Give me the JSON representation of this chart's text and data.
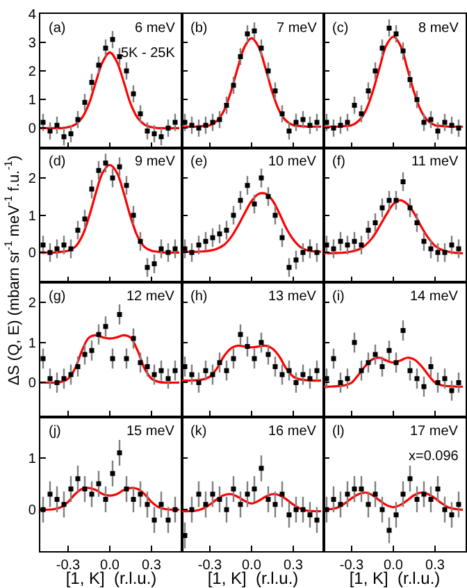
{
  "chart_data": [
    {
      "type": "scatter",
      "marker": "square",
      "xlim": [
        -0.5,
        0.52
      ],
      "ylim": [
        -0.7,
        4
      ],
      "xticks": [
        {
          "value": -0.3,
          "label": null
        },
        {
          "value": 0,
          "label": null
        },
        {
          "value": 0.3,
          "label": null
        }
      ],
      "yticks": [
        0,
        1,
        2,
        3,
        4
      ],
      "tick_labels": "y",
      "annotations": [
        "(a)",
        "6 meV",
        "5K - 25K"
      ],
      "series": [
        {
          "color": "#000000",
          "x": [
            -0.48,
            -0.43,
            -0.38,
            -0.33,
            -0.28,
            -0.23,
            -0.18,
            -0.13,
            -0.08,
            -0.03,
            0.02,
            0.07,
            0.12,
            0.17,
            0.22,
            0.27,
            0.32,
            0.37,
            0.42,
            0.47
          ],
          "values": [
            0.2,
            -0.1,
            0.1,
            -0.3,
            -0.2,
            0.3,
            0.9,
            1.6,
            2.2,
            2.8,
            3.1,
            2.5,
            2.0,
            1.2,
            0.5,
            -0.1,
            -0.2,
            -0.3,
            0.0,
            0.2
          ],
          "errors": [
            0.3,
            0.3,
            0.3,
            0.3,
            0.3,
            0.3,
            0.3,
            0.3,
            0.3,
            0.3,
            0.3,
            0.3,
            0.3,
            0.3,
            0.3,
            0.3,
            0.3,
            0.3,
            0.3,
            0.3
          ]
        },
        {
          "type": "line",
          "marker": "none",
          "color": "#ff0000",
          "x": [
            -0.5,
            -0.45,
            -0.4,
            -0.35,
            -0.3,
            -0.25,
            -0.2,
            -0.15,
            -0.1,
            -0.05,
            0.0,
            0.05,
            0.1,
            0.15,
            0.2,
            0.25,
            0.3,
            0.35,
            0.4,
            0.45,
            0.5
          ],
          "values": [
            0,
            0,
            0,
            0,
            0.03,
            0.12,
            0.36,
            0.85,
            1.62,
            2.33,
            2.65,
            2.33,
            1.62,
            0.85,
            0.36,
            0.12,
            0.03,
            0,
            0,
            0,
            0
          ]
        }
      ]
    },
    {
      "type": "scatter",
      "marker": "square",
      "xlim": [
        -0.5,
        0.52
      ],
      "ylim": [
        -0.7,
        4
      ],
      "xticks": [
        {
          "value": -0.3,
          "label": null
        },
        {
          "value": 0,
          "label": null
        },
        {
          "value": 0.3,
          "label": null
        }
      ],
      "yticks": [
        {
          "value": 0,
          "label": null
        },
        {
          "value": 1,
          "label": null
        },
        {
          "value": 2,
          "label": null
        },
        {
          "value": 3,
          "label": null
        },
        {
          "value": 4,
          "label": null
        }
      ],
      "tick_labels": false,
      "annotations": [
        "(b)",
        "7 meV"
      ],
      "series": [
        {
          "color": "#000000",
          "x": [
            -0.48,
            -0.43,
            -0.38,
            -0.33,
            -0.28,
            -0.23,
            -0.18,
            -0.13,
            -0.08,
            -0.03,
            0.02,
            0.07,
            0.12,
            0.17,
            0.22,
            0.27,
            0.32,
            0.37,
            0.42,
            0.47
          ],
          "values": [
            0.2,
            0.1,
            0.0,
            0.1,
            0.2,
            0.3,
            0.8,
            1.5,
            2.5,
            3.3,
            3.4,
            2.8,
            2.0,
            1.3,
            0.5,
            -0.1,
            0.2,
            0.3,
            0.1,
            0.2
          ],
          "errors": [
            0.3,
            0.3,
            0.3,
            0.3,
            0.3,
            0.3,
            0.3,
            0.3,
            0.3,
            0.3,
            0.3,
            0.3,
            0.3,
            0.3,
            0.3,
            0.3,
            0.3,
            0.3,
            0.3,
            0.3
          ]
        },
        {
          "type": "line",
          "marker": "none",
          "color": "#ff0000",
          "x": [
            -0.5,
            -0.45,
            -0.4,
            -0.35,
            -0.3,
            -0.25,
            -0.2,
            -0.15,
            -0.1,
            -0.05,
            0.0,
            0.05,
            0.1,
            0.15,
            0.2,
            0.25,
            0.3,
            0.35,
            0.4,
            0.45,
            0.5
          ],
          "values": [
            0.05,
            0.05,
            0.05,
            0.07,
            0.1,
            0.25,
            0.6,
            1.25,
            2.1,
            2.85,
            3.15,
            2.85,
            2.1,
            1.25,
            0.6,
            0.25,
            0.1,
            0.07,
            0.05,
            0.05,
            0.05
          ]
        }
      ]
    },
    {
      "type": "scatter",
      "marker": "square",
      "xlim": [
        -0.5,
        0.52
      ],
      "ylim": [
        -0.7,
        4
      ],
      "xticks": [
        {
          "value": -0.3,
          "label": null
        },
        {
          "value": 0,
          "label": null
        },
        {
          "value": 0.3,
          "label": null
        }
      ],
      "yticks": [
        {
          "value": 0,
          "label": null
        },
        {
          "value": 1,
          "label": null
        },
        {
          "value": 2,
          "label": null
        },
        {
          "value": 3,
          "label": null
        },
        {
          "value": 4,
          "label": null
        }
      ],
      "tick_labels": false,
      "annotations": [
        "(c)",
        "8 meV"
      ],
      "series": [
        {
          "color": "#000000",
          "x": [
            -0.48,
            -0.43,
            -0.38,
            -0.33,
            -0.28,
            -0.23,
            -0.18,
            -0.13,
            -0.08,
            -0.03,
            0.02,
            0.07,
            0.12,
            0.17,
            0.22,
            0.27,
            0.32,
            0.37,
            0.42,
            0.47
          ],
          "values": [
            0.2,
            0.0,
            0.1,
            0.2,
            0.8,
            0.5,
            1.3,
            2.0,
            2.8,
            3.5,
            3.3,
            2.7,
            1.7,
            1.0,
            0.2,
            0.3,
            -0.1,
            0.2,
            0.1,
            0.0
          ],
          "errors": [
            0.3,
            0.3,
            0.3,
            0.3,
            0.3,
            0.3,
            0.3,
            0.3,
            0.3,
            0.3,
            0.3,
            0.3,
            0.3,
            0.3,
            0.3,
            0.3,
            0.3,
            0.3,
            0.3,
            0.3
          ]
        },
        {
          "type": "line",
          "marker": "none",
          "color": "#ff0000",
          "x": [
            -0.5,
            -0.45,
            -0.4,
            -0.35,
            -0.3,
            -0.25,
            -0.2,
            -0.15,
            -0.1,
            -0.05,
            0.0,
            0.05,
            0.1,
            0.15,
            0.2,
            0.25,
            0.3,
            0.35,
            0.4,
            0.45,
            0.5
          ],
          "values": [
            0.05,
            0.05,
            0.05,
            0.07,
            0.1,
            0.25,
            0.6,
            1.25,
            2.1,
            2.9,
            3.2,
            2.9,
            2.1,
            1.25,
            0.6,
            0.25,
            0.1,
            0.07,
            0.05,
            0.05,
            0.05
          ]
        }
      ]
    },
    {
      "type": "scatter",
      "marker": "square",
      "xlim": [
        -0.5,
        0.52
      ],
      "ylim": [
        -0.8,
        2.8
      ],
      "xticks": [
        {
          "value": -0.3,
          "label": null
        },
        {
          "value": 0,
          "label": null
        },
        {
          "value": 0.3,
          "label": null
        }
      ],
      "yticks": [
        0,
        1,
        2
      ],
      "tick_labels": "y",
      "annotations": [
        "(d)",
        "9 meV"
      ],
      "series": [
        {
          "color": "#000000",
          "x": [
            -0.48,
            -0.43,
            -0.38,
            -0.33,
            -0.28,
            -0.23,
            -0.18,
            -0.13,
            -0.08,
            -0.03,
            0.02,
            0.07,
            0.12,
            0.17,
            0.22,
            0.27,
            0.32,
            0.37,
            0.42,
            0.47
          ],
          "values": [
            0.2,
            0.0,
            0.1,
            0.2,
            0.1,
            0.6,
            0.9,
            1.7,
            2.2,
            2.4,
            2.0,
            2.3,
            1.8,
            1.0,
            0.3,
            -0.4,
            -0.3,
            0.1,
            0.0,
            0.1
          ],
          "errors": [
            0.25,
            0.25,
            0.25,
            0.25,
            0.25,
            0.25,
            0.25,
            0.25,
            0.25,
            0.25,
            0.25,
            0.25,
            0.25,
            0.25,
            0.25,
            0.25,
            0.25,
            0.25,
            0.25,
            0.25
          ]
        },
        {
          "type": "line",
          "marker": "none",
          "color": "#ff0000",
          "x": [
            -0.5,
            -0.45,
            -0.4,
            -0.35,
            -0.3,
            -0.25,
            -0.2,
            -0.15,
            -0.1,
            -0.05,
            0.0,
            0.05,
            0.1,
            0.15,
            0.2,
            0.25,
            0.3,
            0.35,
            0.4,
            0.45,
            0.5
          ],
          "values": [
            0,
            0,
            0,
            0.02,
            0.05,
            0.15,
            0.43,
            0.95,
            1.6,
            2.15,
            2.35,
            2.15,
            1.6,
            0.95,
            0.43,
            0.15,
            0.05,
            0.02,
            0,
            0,
            0
          ]
        }
      ]
    },
    {
      "type": "scatter",
      "marker": "square",
      "xlim": [
        -0.5,
        0.52
      ],
      "ylim": [
        -0.8,
        2.8
      ],
      "xticks": [
        {
          "value": -0.3,
          "label": null
        },
        {
          "value": 0,
          "label": null
        },
        {
          "value": 0.3,
          "label": null
        }
      ],
      "yticks": [
        {
          "value": 0,
          "label": null
        },
        {
          "value": 1,
          "label": null
        },
        {
          "value": 2,
          "label": null
        }
      ],
      "tick_labels": false,
      "annotations": [
        "(e)",
        "10 meV"
      ],
      "series": [
        {
          "color": "#000000",
          "x": [
            -0.48,
            -0.43,
            -0.38,
            -0.33,
            -0.28,
            -0.23,
            -0.18,
            -0.13,
            -0.08,
            -0.03,
            0.02,
            0.07,
            0.12,
            0.17,
            0.22,
            0.27,
            0.32,
            0.37,
            0.42,
            0.47
          ],
          "values": [
            0.1,
            0.0,
            0.2,
            0.3,
            0.4,
            0.5,
            0.6,
            1.0,
            1.4,
            1.8,
            1.3,
            2.0,
            1.5,
            1.0,
            0.4,
            -0.4,
            -0.2,
            0.0,
            0.1,
            0.0
          ],
          "errors": [
            0.25,
            0.25,
            0.25,
            0.25,
            0.25,
            0.25,
            0.25,
            0.25,
            0.25,
            0.25,
            0.25,
            0.25,
            0.25,
            0.25,
            0.25,
            0.25,
            0.25,
            0.25,
            0.25,
            0.25
          ]
        },
        {
          "type": "line",
          "marker": "none",
          "color": "#ff0000",
          "x": [
            -0.5,
            -0.45,
            -0.4,
            -0.35,
            -0.3,
            -0.25,
            -0.2,
            -0.15,
            -0.1,
            -0.05,
            0.0,
            0.05,
            0.1,
            0.15,
            0.2,
            0.25,
            0.3,
            0.35,
            0.4,
            0.45,
            0.5
          ],
          "values": [
            0.02,
            0.02,
            0.02,
            0.03,
            0.05,
            0.1,
            0.2,
            0.4,
            0.7,
            1.05,
            1.38,
            1.57,
            1.58,
            1.4,
            1.05,
            0.65,
            0.35,
            0.15,
            0.06,
            0.03,
            0.02
          ]
        }
      ]
    },
    {
      "type": "scatter",
      "marker": "square",
      "xlim": [
        -0.5,
        0.52
      ],
      "ylim": [
        -0.8,
        2.8
      ],
      "xticks": [
        {
          "value": -0.3,
          "label": null
        },
        {
          "value": 0,
          "label": null
        },
        {
          "value": 0.3,
          "label": null
        }
      ],
      "yticks": [
        {
          "value": 0,
          "label": null
        },
        {
          "value": 1,
          "label": null
        },
        {
          "value": 2,
          "label": null
        }
      ],
      "tick_labels": false,
      "annotations": [
        "(f)",
        "11 meV"
      ],
      "series": [
        {
          "color": "#000000",
          "x": [
            -0.48,
            -0.43,
            -0.38,
            -0.33,
            -0.28,
            -0.23,
            -0.18,
            -0.13,
            -0.08,
            -0.03,
            0.02,
            0.07,
            0.12,
            0.17,
            0.22,
            0.27,
            0.32,
            0.37,
            0.42,
            0.47
          ],
          "values": [
            0.2,
            0.1,
            0.3,
            0.2,
            0.3,
            0.2,
            0.6,
            0.8,
            1.2,
            1.4,
            1.4,
            1.9,
            1.2,
            0.8,
            0.3,
            0.1,
            0.0,
            0.0,
            0.2,
            0.1
          ],
          "errors": [
            0.25,
            0.25,
            0.25,
            0.25,
            0.25,
            0.25,
            0.25,
            0.25,
            0.25,
            0.25,
            0.25,
            0.25,
            0.25,
            0.25,
            0.25,
            0.25,
            0.25,
            0.25,
            0.25,
            0.25
          ]
        },
        {
          "type": "line",
          "marker": "none",
          "color": "#ff0000",
          "x": [
            -0.5,
            -0.45,
            -0.4,
            -0.35,
            -0.3,
            -0.25,
            -0.2,
            -0.15,
            -0.1,
            -0.05,
            0.0,
            0.05,
            0.1,
            0.15,
            0.2,
            0.25,
            0.3,
            0.35,
            0.4,
            0.45,
            0.5
          ],
          "values": [
            -0.02,
            -0.02,
            -0.01,
            0.0,
            0.03,
            0.08,
            0.2,
            0.4,
            0.7,
            1.02,
            1.3,
            1.4,
            1.3,
            1.05,
            0.7,
            0.4,
            0.18,
            0.07,
            0.02,
            -0.01,
            -0.02
          ]
        }
      ]
    },
    {
      "type": "scatter",
      "marker": "square",
      "xlim": [
        -0.5,
        0.52
      ],
      "ylim": [
        -0.85,
        2.5
      ],
      "xticks": [
        {
          "value": -0.3,
          "label": null
        },
        {
          "value": 0,
          "label": null
        },
        {
          "value": 0.3,
          "label": null
        }
      ],
      "yticks": [
        0,
        1,
        2
      ],
      "tick_labels": "y",
      "annotations": [
        "(g)",
        "12 meV"
      ],
      "series": [
        {
          "color": "#000000",
          "x": [
            -0.48,
            -0.43,
            -0.38,
            -0.33,
            -0.28,
            -0.23,
            -0.18,
            -0.13,
            -0.08,
            -0.03,
            0.02,
            0.07,
            0.12,
            0.17,
            0.22,
            0.27,
            0.32,
            0.37,
            0.42,
            0.47
          ],
          "values": [
            0.6,
            0.1,
            0.0,
            0.1,
            0.2,
            0.4,
            0.7,
            0.8,
            1.2,
            1.4,
            0.6,
            1.7,
            0.6,
            1.1,
            0.5,
            0.4,
            0.2,
            0.3,
            0.1,
            0.3
          ],
          "errors": [
            0.25,
            0.25,
            0.25,
            0.25,
            0.25,
            0.25,
            0.25,
            0.25,
            0.25,
            0.25,
            0.25,
            0.25,
            0.25,
            0.25,
            0.25,
            0.25,
            0.25,
            0.25,
            0.25,
            0.25
          ]
        },
        {
          "type": "line",
          "marker": "none",
          "color": "#ff0000",
          "x": [
            -0.5,
            -0.45,
            -0.4,
            -0.35,
            -0.3,
            -0.25,
            -0.2,
            -0.15,
            -0.1,
            -0.05,
            0.0,
            0.05,
            0.1,
            0.15,
            0.2,
            0.25,
            0.3,
            0.35,
            0.4,
            0.45,
            0.5
          ],
          "values": [
            0,
            0,
            0,
            0.02,
            0.1,
            0.35,
            0.8,
            1.12,
            1.18,
            1.13,
            1.1,
            1.13,
            1.18,
            1.12,
            0.8,
            0.35,
            0.1,
            0.02,
            0,
            0,
            0
          ]
        }
      ]
    },
    {
      "type": "scatter",
      "marker": "square",
      "xlim": [
        -0.5,
        0.52
      ],
      "ylim": [
        -0.85,
        2.5
      ],
      "xticks": [
        {
          "value": -0.3,
          "label": null
        },
        {
          "value": 0,
          "label": null
        },
        {
          "value": 0.3,
          "label": null
        }
      ],
      "yticks": [
        {
          "value": 0,
          "label": null
        },
        {
          "value": 1,
          "label": null
        },
        {
          "value": 2,
          "label": null
        }
      ],
      "tick_labels": false,
      "annotations": [
        "(h)",
        "13 meV"
      ],
      "series": [
        {
          "color": "#000000",
          "x": [
            -0.48,
            -0.43,
            -0.38,
            -0.33,
            -0.28,
            -0.23,
            -0.18,
            -0.13,
            -0.08,
            -0.03,
            0.02,
            0.07,
            0.12,
            0.17,
            0.22,
            0.27,
            0.32,
            0.37,
            0.42,
            0.47
          ],
          "values": [
            0.4,
            0.2,
            0.0,
            0.3,
            0.2,
            0.5,
            0.3,
            0.6,
            1.2,
            0.9,
            0.6,
            1.0,
            0.7,
            0.4,
            0.2,
            0.3,
            0.0,
            0.2,
            0.1,
            0.3
          ],
          "errors": [
            0.25,
            0.25,
            0.25,
            0.25,
            0.25,
            0.25,
            0.25,
            0.25,
            0.25,
            0.25,
            0.25,
            0.25,
            0.25,
            0.25,
            0.25,
            0.25,
            0.25,
            0.25,
            0.25,
            0.25
          ]
        },
        {
          "type": "line",
          "marker": "none",
          "color": "#ff0000",
          "x": [
            -0.5,
            -0.45,
            -0.4,
            -0.35,
            -0.3,
            -0.25,
            -0.2,
            -0.15,
            -0.1,
            -0.05,
            0.0,
            0.05,
            0.1,
            0.15,
            0.2,
            0.25,
            0.3,
            0.35,
            0.4,
            0.45,
            0.5
          ],
          "values": [
            0.05,
            0.05,
            0.06,
            0.08,
            0.15,
            0.35,
            0.65,
            0.85,
            0.92,
            0.9,
            0.88,
            0.9,
            0.92,
            0.85,
            0.65,
            0.35,
            0.15,
            0.08,
            0.06,
            0.05,
            0.05
          ]
        }
      ]
    },
    {
      "type": "scatter",
      "marker": "square",
      "xlim": [
        -0.5,
        0.52
      ],
      "ylim": [
        -0.85,
        2.5
      ],
      "xticks": [
        {
          "value": -0.3,
          "label": null
        },
        {
          "value": 0,
          "label": null
        },
        {
          "value": 0.3,
          "label": null
        }
      ],
      "yticks": [
        {
          "value": 0,
          "label": null
        },
        {
          "value": 1,
          "label": null
        },
        {
          "value": 2,
          "label": null
        }
      ],
      "tick_labels": false,
      "annotations": [
        "(i)",
        "14 meV"
      ],
      "series": [
        {
          "color": "#000000",
          "x": [
            -0.48,
            -0.43,
            -0.38,
            -0.33,
            -0.28,
            -0.23,
            -0.18,
            -0.13,
            -0.08,
            -0.03,
            0.02,
            0.07,
            0.12,
            0.17,
            0.22,
            0.27,
            0.32,
            0.37,
            0.42,
            0.47
          ],
          "values": [
            0.1,
            0.6,
            0.0,
            0.1,
            1.0,
            0.3,
            0.5,
            0.7,
            0.4,
            0.8,
            0.5,
            1.3,
            0.3,
            0.1,
            -0.1,
            0.4,
            0.0,
            0.1,
            -0.2,
            0.0
          ],
          "errors": [
            0.25,
            0.25,
            0.25,
            0.25,
            0.25,
            0.25,
            0.25,
            0.25,
            0.25,
            0.25,
            0.25,
            0.25,
            0.25,
            0.25,
            0.25,
            0.25,
            0.25,
            0.25,
            0.25,
            0.25
          ]
        },
        {
          "type": "line",
          "marker": "none",
          "color": "#ff0000",
          "x": [
            -0.5,
            -0.45,
            -0.4,
            -0.35,
            -0.3,
            -0.25,
            -0.2,
            -0.15,
            -0.1,
            -0.05,
            0.0,
            0.05,
            0.1,
            0.15,
            0.2,
            0.25,
            0.3,
            0.35,
            0.4,
            0.45,
            0.5
          ],
          "values": [
            -0.1,
            -0.1,
            -0.09,
            -0.07,
            0.0,
            0.2,
            0.42,
            0.58,
            0.62,
            0.55,
            0.5,
            0.55,
            0.62,
            0.58,
            0.42,
            0.2,
            0.0,
            -0.07,
            -0.09,
            -0.1,
            -0.1
          ]
        }
      ]
    },
    {
      "type": "scatter",
      "marker": "square",
      "xlim": [
        -0.5,
        0.52
      ],
      "ylim": [
        -0.8,
        1.8
      ],
      "xticks": [
        {
          "value": -0.3,
          "label": "-0.3"
        },
        {
          "value": 0,
          "label": "0.0"
        },
        {
          "value": 0.3,
          "label": "0.3"
        }
      ],
      "yticks": [
        0,
        1
      ],
      "xlabel": "[1, K]  (r.l.u.)",
      "ylabel": "ΔS (Q, E) (mbarn sr$^{-1}$ meV$^{-1}$ f.u.$^{-1}$)",
      "annotations": [
        "(j)",
        "15 meV"
      ],
      "series": [
        {
          "color": "#000000",
          "x": [
            -0.48,
            -0.43,
            -0.38,
            -0.33,
            -0.28,
            -0.23,
            -0.18,
            -0.13,
            -0.08,
            -0.03,
            0.02,
            0.07,
            0.12,
            0.17,
            0.22,
            0.27,
            0.32,
            0.37,
            0.42,
            0.47
          ],
          "values": [
            0.0,
            0.3,
            0.2,
            0.1,
            0.4,
            0.6,
            0.4,
            0.3,
            0.5,
            0.2,
            0.7,
            1.1,
            0.4,
            0.2,
            0.3,
            0.1,
            -0.2,
            0.1,
            -0.2,
            0.0
          ],
          "errors": [
            0.25,
            0.25,
            0.25,
            0.25,
            0.25,
            0.25,
            0.25,
            0.25,
            0.25,
            0.25,
            0.25,
            0.25,
            0.25,
            0.25,
            0.25,
            0.25,
            0.25,
            0.25,
            0.25,
            0.25
          ]
        },
        {
          "type": "line",
          "marker": "none",
          "color": "#ff0000",
          "x": [
            -0.5,
            -0.45,
            -0.4,
            -0.35,
            -0.3,
            -0.25,
            -0.2,
            -0.15,
            -0.1,
            -0.05,
            0.0,
            0.05,
            0.1,
            0.15,
            0.2,
            0.25,
            0.3,
            0.35,
            0.4,
            0.45,
            0.5
          ],
          "values": [
            0,
            0,
            0.01,
            0.05,
            0.15,
            0.3,
            0.4,
            0.42,
            0.38,
            0.3,
            0.27,
            0.3,
            0.38,
            0.42,
            0.4,
            0.3,
            0.15,
            0.05,
            0.01,
            0,
            0
          ]
        }
      ]
    },
    {
      "type": "scatter",
      "marker": "square",
      "xlim": [
        -0.5,
        0.52
      ],
      "ylim": [
        -0.8,
        1.8
      ],
      "xticks": [
        {
          "value": -0.3,
          "label": "-0.3"
        },
        {
          "value": 0,
          "label": "0.0"
        },
        {
          "value": 0.3,
          "label": "0.3"
        }
      ],
      "yticks": [
        {
          "value": 0,
          "label": null
        },
        {
          "value": 1,
          "label": null
        }
      ],
      "tick_labels": "x",
      "xlabel": "[1, K]  (r.l.u.)",
      "annotations": [
        "(k)",
        "16 meV"
      ],
      "series": [
        {
          "color": "#000000",
          "x": [
            -0.48,
            -0.43,
            -0.38,
            -0.33,
            -0.28,
            -0.23,
            -0.18,
            -0.13,
            -0.08,
            -0.03,
            0.02,
            0.07,
            0.12,
            0.17,
            0.22,
            0.27,
            0.32,
            0.37,
            0.42,
            0.47
          ],
          "values": [
            -0.5,
            0.0,
            0.3,
            0.1,
            0.3,
            0.2,
            0.0,
            0.4,
            0.1,
            0.3,
            0.4,
            0.8,
            0.2,
            0.1,
            0.3,
            -0.1,
            0.0,
            0.0,
            -0.1,
            -0.2
          ],
          "errors": [
            0.25,
            0.25,
            0.25,
            0.25,
            0.25,
            0.25,
            0.25,
            0.25,
            0.25,
            0.25,
            0.25,
            0.25,
            0.25,
            0.25,
            0.25,
            0.25,
            0.25,
            0.25,
            0.25,
            0.25
          ]
        },
        {
          "type": "line",
          "marker": "none",
          "color": "#ff0000",
          "x": [
            -0.5,
            -0.45,
            -0.4,
            -0.35,
            -0.3,
            -0.25,
            -0.2,
            -0.15,
            -0.1,
            -0.05,
            0.0,
            0.05,
            0.1,
            0.15,
            0.2,
            0.25,
            0.3,
            0.35,
            0.4,
            0.45,
            0.5
          ],
          "values": [
            -0.03,
            -0.03,
            -0.02,
            0.02,
            0.1,
            0.2,
            0.28,
            0.3,
            0.25,
            0.17,
            0.12,
            0.17,
            0.25,
            0.3,
            0.28,
            0.2,
            0.1,
            0.02,
            -0.02,
            -0.03,
            -0.03
          ]
        }
      ]
    },
    {
      "type": "scatter",
      "marker": "square",
      "xlim": [
        -0.5,
        0.52
      ],
      "ylim": [
        -0.8,
        1.8
      ],
      "xticks": [
        {
          "value": -0.3,
          "label": "-0.3"
        },
        {
          "value": 0,
          "label": "0.0"
        },
        {
          "value": 0.3,
          "label": "0.3"
        }
      ],
      "yticks": [
        {
          "value": 0,
          "label": null
        },
        {
          "value": 1,
          "label": null
        }
      ],
      "tick_labels": "x",
      "xlabel": "[1, K]  (r.l.u.)",
      "annotations": [
        "(l)",
        "17 meV",
        "x=0.096"
      ],
      "series": [
        {
          "color": "#000000",
          "x": [
            -0.48,
            -0.43,
            -0.38,
            -0.33,
            -0.28,
            -0.23,
            -0.18,
            -0.13,
            -0.08,
            -0.03,
            0.02,
            0.07,
            0.12,
            0.17,
            0.22,
            0.27,
            0.32,
            0.37,
            0.42,
            0.47
          ],
          "values": [
            0.0,
            0.2,
            0.1,
            0.3,
            0.4,
            0.4,
            0.1,
            0.3,
            0.0,
            -0.4,
            -0.1,
            0.3,
            0.6,
            0.2,
            0.3,
            0.2,
            0.4,
            0.0,
            -0.1,
            0.1
          ],
          "errors": [
            0.25,
            0.25,
            0.25,
            0.25,
            0.25,
            0.25,
            0.25,
            0.25,
            0.25,
            0.25,
            0.25,
            0.25,
            0.25,
            0.25,
            0.25,
            0.25,
            0.25,
            0.25,
            0.25,
            0.25
          ]
        },
        {
          "type": "line",
          "marker": "none",
          "color": "#ff0000",
          "x": [
            -0.5,
            -0.45,
            -0.4,
            -0.35,
            -0.3,
            -0.25,
            -0.2,
            -0.15,
            -0.1,
            -0.05,
            0.0,
            0.05,
            0.1,
            0.15,
            0.2,
            0.25,
            0.3,
            0.35,
            0.4,
            0.45,
            0.5
          ],
          "values": [
            0,
            0.01,
            0.04,
            0.12,
            0.22,
            0.3,
            0.33,
            0.28,
            0.18,
            0.09,
            0.05,
            0.09,
            0.18,
            0.28,
            0.33,
            0.3,
            0.22,
            0.12,
            0.04,
            0.01,
            0
          ]
        }
      ]
    }
  ]
}
